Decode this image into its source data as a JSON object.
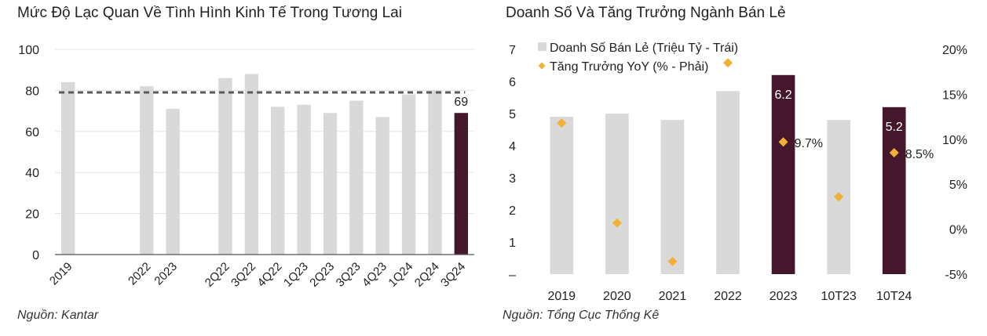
{
  "chart_data": [
    {
      "type": "bar",
      "title": "Mức Độ Lạc Quan Về Tình Hình Kinh Tế Trong Tương Lai",
      "source": "Nguồn: Kantar",
      "categories": [
        "2019",
        "",
        "",
        "2022",
        "2023",
        "",
        "2Q22",
        "3Q22",
        "4Q22",
        "1Q23",
        "2Q23",
        "3Q23",
        "4Q23",
        "1Q24",
        "2Q24",
        "3Q24"
      ],
      "values": [
        84,
        null,
        null,
        82,
        71,
        null,
        86,
        88,
        72,
        73,
        69,
        75,
        67,
        78,
        80,
        69
      ],
      "highlight_index": 15,
      "bar_label": "69",
      "reference_line": 79,
      "ylim": [
        0,
        100
      ],
      "yticks": [
        "0",
        "20",
        "40",
        "60",
        "80",
        "100"
      ],
      "colors": {
        "bar": "#d9d9d9",
        "highlight": "#44172d",
        "reference": "#5a5a5a"
      }
    },
    {
      "type": "bar",
      "title": "Doanh Số Và Tăng Trưởng Ngành Bán Lẻ",
      "source": "Nguồn: Tổng Cục Thống Kê",
      "categories": [
        "2019",
        "2020",
        "2021",
        "2022",
        "2023",
        "10T23",
        "10T24"
      ],
      "series": [
        {
          "name": "Doanh Số Bán Lẻ (Triệu Tỷ - Trái)",
          "values": [
            4.9,
            5.0,
            4.8,
            5.7,
            6.2,
            4.8,
            5.2
          ],
          "axis": "left"
        },
        {
          "name": "Tăng Trưởng YoY (% - Phải)",
          "values": [
            11.8,
            0.7,
            -3.6,
            18.5,
            9.7,
            3.6,
            8.5
          ],
          "axis": "right",
          "marker": "diamond"
        }
      ],
      "highlight_indices": [
        4,
        6
      ],
      "bar_labels": {
        "4": "6.2",
        "6": "5.2"
      },
      "point_labels": {
        "4": "9.7%",
        "6": "8.5%"
      },
      "ylim_left": [
        0,
        7
      ],
      "yticks_left": [
        "–",
        "1",
        "2",
        "3",
        "4",
        "5",
        "6",
        "7"
      ],
      "ylim_right": [
        -5,
        20
      ],
      "yticks_right": [
        "-5%",
        "0%",
        "5%",
        "10%",
        "15%",
        "20%"
      ],
      "legend_position": "top-left",
      "colors": {
        "bar": "#d9d9d9",
        "highlight": "#44172d",
        "marker": "#f2b134"
      }
    }
  ]
}
